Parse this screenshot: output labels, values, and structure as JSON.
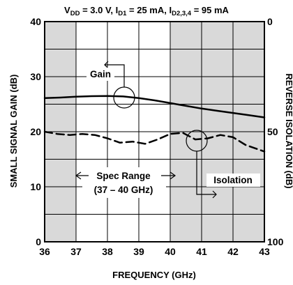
{
  "chart_data": {
    "type": "line",
    "title": {
      "v": "V",
      "v_sub": "DD",
      "v_val": " = 3.0 V, I",
      "i1_sub": "D1",
      "i1_val": " = 25 mA, I",
      "i2_sub": "D2,3,4",
      "i2_val": " = 95 mA"
    },
    "xlabel": "FREQUENCY (GHz)",
    "ylabel": "SMALL SIGNAL GAIN (dB)",
    "y2label": "REVERSE ISOLATION (dB)",
    "xlim": [
      36,
      43
    ],
    "ylim": [
      0,
      40
    ],
    "y2lim": [
      100,
      0
    ],
    "xticks": [
      "36",
      "37",
      "38",
      "39",
      "40",
      "41",
      "42",
      "43"
    ],
    "yticks": [
      "0",
      "10",
      "20",
      "30",
      "40"
    ],
    "y2ticks": [
      "100",
      "50",
      "0"
    ],
    "grid": true,
    "shaded_regions": [
      [
        36,
        37
      ],
      [
        40,
        43
      ]
    ],
    "series": [
      {
        "name": "Gain",
        "axis": "left",
        "style": "solid",
        "x": [
          36,
          36.5,
          37,
          37.5,
          38,
          38.5,
          39,
          39.5,
          40,
          40.5,
          41,
          41.5,
          42,
          42.5,
          43
        ],
        "y": [
          26.1,
          26.2,
          26.35,
          26.45,
          26.5,
          26.4,
          26.1,
          25.7,
          25.2,
          24.7,
          24.2,
          23.8,
          23.4,
          23.0,
          22.6
        ]
      },
      {
        "name": "Isolation",
        "axis": "right",
        "style": "dashed",
        "x": [
          36,
          36.4,
          36.8,
          37.2,
          37.6,
          38.0,
          38.4,
          38.8,
          39.2,
          39.6,
          40.0,
          40.4,
          40.8,
          41.2,
          41.6,
          42.0,
          42.4,
          42.8,
          43
        ],
        "y": [
          50.0,
          51.0,
          51.5,
          51.0,
          51.5,
          53.0,
          55.0,
          54.5,
          55.5,
          53.5,
          51.0,
          50.5,
          53.5,
          53.0,
          51.5,
          52.5,
          56.0,
          58.0,
          59.0
        ]
      }
    ],
    "annotations": {
      "gain": "Gain",
      "isolation": "Isolation",
      "spec_range": "Spec Range",
      "spec_range_sub": "(37 – 40 GHz)"
    }
  }
}
